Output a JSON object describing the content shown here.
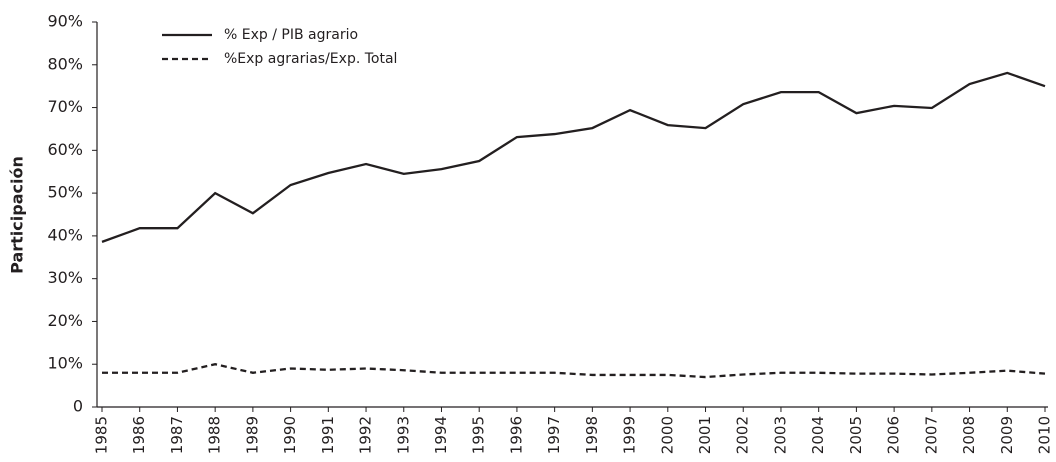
{
  "chart_data": {
    "type": "line",
    "y_label": "Participación",
    "categories": [
      "1985",
      "1986",
      "1987",
      "1988",
      "1989",
      "1990",
      "1991",
      "1992",
      "1993",
      "1994",
      "1995",
      "1996",
      "1997",
      "1998",
      "1999",
      "2000",
      "2001",
      "2002",
      "2003",
      "2004",
      "2005",
      "2006",
      "2007",
      "2008",
      "2009",
      "2010"
    ],
    "series": [
      {
        "name": "% Exp / PIB agrario",
        "color": "#231f20",
        "line_style": "solid",
        "values": [
          38.6,
          41.8,
          41.8,
          50,
          45.3,
          51.9,
          54.7,
          56.8,
          54.5,
          55.6,
          57.5,
          63.1,
          63.8,
          65.2,
          69.4,
          65.9,
          65.2,
          70.8,
          73.6,
          73.6,
          68.7,
          70.4,
          69.9,
          75.5,
          78.1,
          75
        ]
      },
      {
        "name": "%Exp agrarias/Exp. Total",
        "color": "#231f20",
        "line_style": "dashed",
        "values": [
          8,
          8,
          8,
          10,
          8,
          9,
          8.7,
          9,
          8.6,
          8,
          8,
          8,
          8,
          7.5,
          7.5,
          7.5,
          7,
          7.6,
          8,
          8,
          7.8,
          7.8,
          7.6,
          8,
          8.5,
          7.8
        ]
      }
    ],
    "ylim": [
      0,
      90
    ],
    "yticks": [
      0,
      {
        "value": 10,
        "label": "10%"
      },
      {
        "value": 20,
        "label": "20%"
      },
      {
        "value": 30,
        "label": "30%"
      },
      {
        "value": 40,
        "label": "40%"
      },
      {
        "value": 50,
        "label": "50%"
      },
      {
        "value": 60,
        "label": "60%"
      },
      {
        "value": 70,
        "label": "70%"
      },
      {
        "value": 80,
        "label": "80%"
      },
      {
        "value": 90,
        "label": "90%"
      }
    ],
    "grid": false,
    "legend": "top-left"
  }
}
